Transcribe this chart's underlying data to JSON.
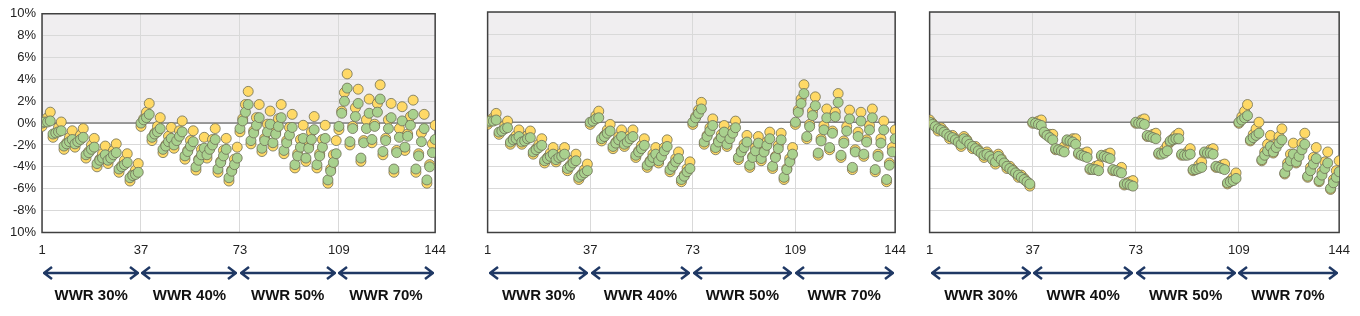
{
  "chart_data": [
    {
      "type": "scatter",
      "x": [
        1,
        2,
        3,
        4,
        5,
        6,
        7,
        8,
        9,
        10,
        11,
        12,
        13,
        14,
        15,
        16,
        17,
        18,
        19,
        20,
        21,
        22,
        23,
        24,
        25,
        26,
        27,
        28,
        29,
        30,
        31,
        32,
        33,
        34,
        35,
        36,
        37,
        38,
        39,
        40,
        41,
        42,
        43,
        44,
        45,
        46,
        47,
        48,
        49,
        50,
        51,
        52,
        53,
        54,
        55,
        56,
        57,
        58,
        59,
        60,
        61,
        62,
        63,
        64,
        65,
        66,
        67,
        68,
        69,
        70,
        71,
        72,
        73,
        74,
        75,
        76,
        77,
        78,
        79,
        80,
        81,
        82,
        83,
        84,
        85,
        86,
        87,
        88,
        89,
        90,
        91,
        92,
        93,
        94,
        95,
        96,
        97,
        98,
        99,
        100,
        101,
        102,
        103,
        104,
        105,
        106,
        107,
        108,
        109,
        110,
        111,
        112,
        113,
        114,
        115,
        116,
        117,
        118,
        119,
        120,
        121,
        122,
        123,
        124,
        125,
        126,
        127,
        128,
        129,
        130,
        131,
        132,
        133,
        134,
        135,
        136,
        137,
        138,
        139,
        140,
        141,
        142,
        143,
        144
      ],
      "series": [
        {
          "color": "#ffd966",
          "values": [
            -0.3,
            null,
            0.5,
            1.0,
            -1.3,
            null,
            -0.4,
            0.1,
            -2.4,
            -1.8,
            -1.3,
            -0.7,
            -2.2,
            null,
            -1.1,
            -0.5,
            -3.2,
            -2.6,
            -2.0,
            -1.4,
            -4.0,
            -3.3,
            -2.8,
            -2.1,
            -3.7,
            null,
            -2.5,
            -1.9,
            -4.5,
            -3.9,
            -3.4,
            -2.8,
            -5.3,
            -4.7,
            -4.3,
            -3.7,
            -0.3,
            0.4,
            1.0,
            1.8,
            -1.6,
            -0.9,
            -0.3,
            0.5,
            -2.7,
            -2.0,
            -1.2,
            -0.4,
            -2.3,
            null,
            -0.7,
            0.2,
            -3.3,
            -2.5,
            -1.6,
            -0.7,
            -4.3,
            -3.3,
            -2.4,
            -1.3,
            -3.2,
            null,
            -1.5,
            -0.5,
            -4.5,
            -3.5,
            -2.5,
            -1.4,
            -5.3,
            -4.3,
            -3.3,
            -2.2,
            -0.8,
            0.4,
            1.7,
            2.9,
            -1.9,
            -0.7,
            0.5,
            1.7,
            -2.6,
            -1.4,
            -0.1,
            1.1,
            -2.1,
            -0.8,
            0.4,
            1.7,
            -2.8,
            -1.6,
            -0.4,
            0.8,
            -4.1,
            -2.8,
            -1.5,
            -0.2,
            -3.5,
            -2.1,
            -0.8,
            0.6,
            -4.1,
            -2.8,
            -1.5,
            -0.2,
            -5.5,
            -4.2,
            -2.9,
            -1.6,
            -0.6,
            1.1,
            2.8,
            4.5,
            -2.0,
            -0.3,
            1.4,
            3.1,
            -3.5,
            -1.6,
            0.3,
            2.2,
            -1.8,
            -0.1,
            1.8,
            3.5,
            -2.9,
            -1.4,
            0.3,
            1.8,
            -4.5,
            -2.5,
            -0.5,
            1.5,
            -2.5,
            -1.0,
            0.6,
            2.1,
            -4.5,
            -2.8,
            -0.9,
            0.8,
            -5.5,
            -3.8,
            -1.9,
            -0.2
          ]
        },
        {
          "color": "#a9d18e",
          "values": [
            0,
            0.1,
            0.1,
            0.2,
            -1.0,
            -0.9,
            -0.8,
            -0.7,
            -2.1,
            -1.9,
            -1.7,
            -1.5,
            -1.9,
            -1.7,
            -1.5,
            -1.3,
            -2.9,
            -2.7,
            -2.4,
            -2.2,
            -3.7,
            -3.4,
            -3.2,
            -2.9,
            -3.4,
            -3.2,
            -2.9,
            -2.7,
            -4.2,
            -4.0,
            -3.8,
            -3.6,
            -5.0,
            -4.8,
            -4.7,
            -4.5,
            0,
            0.3,
            0.5,
            0.8,
            -1.3,
            -1.0,
            -0.8,
            -0.5,
            -2.4,
            -2.1,
            -1.7,
            -1.4,
            -2.0,
            -1.6,
            -1.2,
            -0.8,
            -3.0,
            -2.6,
            -2.1,
            -1.7,
            -4.0,
            -3.4,
            -2.9,
            -2.3,
            -2.9,
            -2.4,
            -2.0,
            -1.5,
            -4.2,
            -3.6,
            -3.0,
            -2.4,
            -5.0,
            -4.4,
            -3.8,
            -3.2,
            -0.5,
            0.2,
            1.0,
            1.7,
            -1.6,
            -0.9,
            -0.2,
            0.5,
            -2.3,
            -1.6,
            -0.8,
            -0.1,
            -1.8,
            -1.0,
            -0.3,
            0.5,
            -2.5,
            -1.8,
            -1.1,
            -0.4,
            -3.8,
            -3.0,
            -2.2,
            -1.4,
            -3.2,
            -2.3,
            -1.5,
            -0.6,
            -3.8,
            -3.0,
            -2.2,
            -1.4,
            -5.2,
            -4.4,
            -3.6,
            -2.8,
            -0.3,
            0.9,
            2.0,
            3.2,
            -1.7,
            -0.5,
            0.6,
            1.8,
            -3.2,
            -1.8,
            -0.5,
            0.9,
            -1.5,
            -0.3,
            1.0,
            2.2,
            -2.6,
            -1.6,
            -0.5,
            0.5,
            -4.2,
            -2.7,
            -1.3,
            0.2,
            -2.2,
            -1.2,
            -0.2,
            0.8,
            -4.2,
            -3.0,
            -1.7,
            -0.5,
            -5.2,
            -4.0,
            -2.7,
            -1.5
          ]
        }
      ],
      "xlim": [
        1,
        144
      ],
      "xticks": [
        1,
        37,
        73,
        109,
        144
      ],
      "ylim": [
        -10,
        10
      ],
      "yticks": [
        {
          "value": -10,
          "label": "10%"
        },
        {
          "value": -8,
          "label": "-8%"
        },
        {
          "value": -6,
          "label": "-6%"
        },
        {
          "value": -4,
          "label": "-4%"
        },
        {
          "value": -2,
          "label": "-2%"
        },
        {
          "value": 0,
          "label": "0%"
        },
        {
          "value": 2,
          "label": "2%"
        },
        {
          "value": 4,
          "label": "4%"
        },
        {
          "value": 6,
          "label": "6%"
        },
        {
          "value": 8,
          "label": "8%"
        },
        {
          "value": 10,
          "label": "10%"
        }
      ],
      "grid": true,
      "marker": "circle",
      "bands": [
        {
          "axis": "y",
          "from": 0,
          "to": 10,
          "color": "#f0eef0"
        }
      ],
      "ref_lines": [
        {
          "axis": "y",
          "value": 0,
          "color": "#7f7f7f"
        }
      ],
      "annotations": [
        "WWR 30%",
        "WWR 40%",
        "WWR 50%",
        "WWR 70%"
      ]
    },
    {
      "type": "scatter",
      "x": [
        1,
        2,
        3,
        4,
        5,
        6,
        7,
        8,
        9,
        10,
        11,
        12,
        13,
        14,
        15,
        16,
        17,
        18,
        19,
        20,
        21,
        22,
        23,
        24,
        25,
        26,
        27,
        28,
        29,
        30,
        31,
        32,
        33,
        34,
        35,
        36,
        37,
        38,
        39,
        40,
        41,
        42,
        43,
        44,
        45,
        46,
        47,
        48,
        49,
        50,
        51,
        52,
        53,
        54,
        55,
        56,
        57,
        58,
        59,
        60,
        61,
        62,
        63,
        64,
        65,
        66,
        67,
        68,
        69,
        70,
        71,
        72,
        73,
        74,
        75,
        76,
        77,
        78,
        79,
        80,
        81,
        82,
        83,
        84,
        85,
        86,
        87,
        88,
        89,
        90,
        91,
        92,
        93,
        94,
        95,
        96,
        97,
        98,
        99,
        100,
        101,
        102,
        103,
        104,
        105,
        106,
        107,
        108,
        109,
        110,
        111,
        112,
        113,
        114,
        115,
        116,
        117,
        118,
        119,
        120,
        121,
        122,
        123,
        124,
        125,
        126,
        127,
        128,
        129,
        130,
        131,
        132,
        133,
        134,
        135,
        136,
        137,
        138,
        139,
        140,
        141,
        142,
        143,
        144
      ],
      "series": [
        {
          "color": "#ffd966",
          "values": [
            -0.2,
            0.2,
            0.4,
            0.8,
            -1.1,
            null,
            -0.3,
            0.1,
            -2.0,
            -1.5,
            -1.2,
            -0.7,
            -2.0,
            null,
            -1.2,
            -0.8,
            -2.9,
            -2.4,
            -2.0,
            -1.5,
            -3.7,
            -3.2,
            -2.8,
            -2.3,
            -3.6,
            null,
            -2.8,
            -2.3,
            -4.4,
            -3.9,
            -3.4,
            -2.9,
            -5.2,
            -4.7,
            -4.3,
            -3.8,
            -0.2,
            null,
            0.6,
            1.0,
            -1.7,
            -1.2,
            -0.7,
            -0.2,
            -2.4,
            -1.8,
            -1.3,
            -0.7,
            -2.2,
            null,
            -1.2,
            -0.7,
            -3.2,
            -2.6,
            -2.1,
            -1.5,
            -4.1,
            -3.5,
            -2.9,
            -2.3,
            -3.7,
            null,
            -2.3,
            -1.6,
            -4.5,
            -3.9,
            -3.3,
            -2.7,
            -5.4,
            -4.8,
            -4.2,
            -3.6,
            -0.2,
            0.5,
            1.1,
            1.8,
            -2.0,
            -1.2,
            -0.5,
            0.3,
            -2.5,
            -1.7,
            -1.1,
            -0.3,
            -2.2,
            null,
            -0.7,
            0.1,
            -3.4,
            -2.6,
            -2.0,
            -1.2,
            -4.1,
            -3.1,
            -2.3,
            -1.3,
            -3.5,
            -2.6,
            -1.8,
            -0.9,
            -4.2,
            -3.1,
            -2.1,
            -1.0,
            -5.2,
            -4.2,
            -3.3,
            -2.3,
            -0.2,
            1.1,
            2.1,
            3.4,
            -1.5,
            -0.2,
            1.0,
            2.3,
            -3.0,
            -1.5,
            -0.3,
            1.2,
            -2.5,
            -0.8,
            0.9,
            2.6,
            -3.2,
            -1.7,
            -0.4,
            1.1,
            -4.3,
            -2.5,
            -0.9,
            0.9,
            -3.1,
            -1.6,
            -0.3,
            1.2,
            -4.5,
            -2.9,
            -1.5,
            0.1,
            -5.4,
            -3.7,
            -2.3,
            -0.7
          ]
        },
        {
          "color": "#a9d18e",
          "values": [
            0,
            0.1,
            0.1,
            0.2,
            -0.9,
            -0.8,
            -0.6,
            -0.5,
            -1.8,
            -1.6,
            -1.5,
            -1.3,
            -1.8,
            -1.7,
            -1.5,
            -1.4,
            -2.7,
            -2.5,
            -2.3,
            -2.1,
            -3.5,
            -3.3,
            -3.1,
            -2.9,
            -3.4,
            -3.2,
            -3.1,
            -2.9,
            -4.2,
            -4.0,
            -3.7,
            -3.5,
            -5.0,
            -4.8,
            -4.6,
            -4.4,
            0,
            0.1,
            0.3,
            0.4,
            -1.5,
            -1.3,
            -1.0,
            -0.8,
            -2.2,
            -1.9,
            -1.6,
            -1.3,
            -2.0,
            -1.8,
            -1.5,
            -1.3,
            -3.0,
            -2.7,
            -2.4,
            -2.1,
            -3.9,
            -3.6,
            -3.2,
            -2.9,
            -3.5,
            -3.1,
            -2.6,
            -2.2,
            -4.3,
            -4.0,
            -3.6,
            -3.3,
            -5.2,
            -4.9,
            -4.5,
            -4.2,
            0,
            0.4,
            0.8,
            1.2,
            -1.8,
            -1.3,
            -0.8,
            -0.3,
            -2.3,
            -1.8,
            -1.4,
            -0.9,
            -2.0,
            -1.5,
            -1.0,
            -0.5,
            -3.2,
            -2.7,
            -2.3,
            -1.8,
            -3.9,
            -3.2,
            -2.6,
            -1.9,
            -3.3,
            -2.7,
            -2.1,
            -1.5,
            -4.0,
            -3.2,
            -2.4,
            -1.6,
            -5.0,
            -4.3,
            -3.6,
            -2.9,
            0,
            0.9,
            1.7,
            2.6,
            -1.3,
            -0.4,
            0.6,
            1.5,
            -2.8,
            -1.7,
            -0.7,
            0.4,
            -2.3,
            -1.0,
            0.5,
            1.8,
            -3.0,
            -1.9,
            -0.8,
            0.3,
            -4.1,
            -2.7,
            -1.3,
            0.1,
            -2.9,
            -1.8,
            -0.7,
            0.4,
            -4.3,
            -3.1,
            -1.9,
            -0.7,
            -5.2,
            -3.9,
            -2.7,
            -1.5
          ]
        }
      ],
      "xlim": [
        1,
        144
      ],
      "xticks": [
        1,
        37,
        73,
        109,
        144
      ],
      "ylim": [
        -10,
        10
      ],
      "yticks": [
        -10,
        -8,
        -6,
        -4,
        -2,
        0,
        2,
        4,
        6,
        8,
        10
      ],
      "tick_labels": "x",
      "grid": true,
      "marker": "circle",
      "bands": [
        {
          "axis": "y",
          "from": 0,
          "to": 10,
          "color": "#f0eef0"
        }
      ],
      "ref_lines": [
        {
          "axis": "y",
          "value": 0,
          "color": "#7f7f7f"
        }
      ],
      "annotations": [
        "WWR 30%",
        "WWR 40%",
        "WWR 50%",
        "WWR 70%"
      ]
    },
    {
      "type": "scatter",
      "x": [
        1,
        2,
        3,
        4,
        5,
        6,
        7,
        8,
        9,
        10,
        11,
        12,
        13,
        14,
        15,
        16,
        17,
        18,
        19,
        20,
        21,
        22,
        23,
        24,
        25,
        26,
        27,
        28,
        29,
        30,
        31,
        32,
        33,
        34,
        35,
        36,
        37,
        38,
        39,
        40,
        41,
        42,
        43,
        44,
        45,
        46,
        47,
        48,
        49,
        50,
        51,
        52,
        53,
        54,
        55,
        56,
        57,
        58,
        59,
        60,
        61,
        62,
        63,
        64,
        65,
        66,
        67,
        68,
        69,
        70,
        71,
        72,
        73,
        74,
        75,
        76,
        77,
        78,
        79,
        80,
        81,
        82,
        83,
        84,
        85,
        86,
        87,
        88,
        89,
        90,
        91,
        92,
        93,
        94,
        95,
        96,
        97,
        98,
        99,
        100,
        101,
        102,
        103,
        104,
        105,
        106,
        107,
        108,
        109,
        110,
        111,
        112,
        113,
        114,
        115,
        116,
        117,
        118,
        119,
        120,
        121,
        122,
        123,
        124,
        125,
        126,
        127,
        128,
        129,
        130,
        131,
        132,
        133,
        134,
        135,
        136,
        137,
        138,
        139,
        140,
        141,
        142,
        143,
        144
      ],
      "series": [
        {
          "color": "#ffd966",
          "values": [
            0.2,
            -0.1,
            null,
            -0.8,
            -0.5,
            -0.8,
            null,
            -1.5,
            -1.2,
            -1.5,
            null,
            -2.2,
            -1.3,
            -1.6,
            null,
            -2.4,
            -2.2,
            -2.5,
            null,
            -3.2,
            -2.7,
            -3.0,
            null,
            -3.8,
            -2.9,
            -3.3,
            -3.7,
            -4.2,
            -4.0,
            -4.3,
            -4.6,
            -5.0,
            -4.8,
            -5.1,
            -5.4,
            -5.8,
            -0.1,
            null,
            0.1,
            0.2,
            -1.0,
            null,
            -1.1,
            -1.1,
            -2.5,
            null,
            null,
            -2.2,
            -1.7,
            null,
            -1.5,
            -1.5,
            -2.9,
            null,
            -2.8,
            -2.7,
            -4.3,
            null,
            -4.0,
            -3.9,
            -3.1,
            null,
            -2.9,
            -2.8,
            -4.4,
            null,
            null,
            -4.1,
            -5.7,
            -5.5,
            -5.4,
            -5.3,
            -0.1,
            null,
            0.2,
            0.3,
            -1.3,
            null,
            -1.1,
            -1.0,
            -2.9,
            null,
            -2.5,
            -2.1,
            -1.8,
            -1.5,
            -1.2,
            -1.0,
            -3.0,
            null,
            -2.7,
            -2.4,
            -4.4,
            null,
            -3.9,
            -3.6,
            -2.8,
            null,
            -2.5,
            -2.4,
            -4.1,
            null,
            -3.9,
            -3.8,
            -5.6,
            -5.3,
            -5.0,
            -4.6,
            -0.1,
            0.5,
            1.0,
            1.6,
            -1.7,
            -1.1,
            -0.6,
            0,
            -3.5,
            -2.7,
            -2.0,
            -1.2,
            -2.8,
            -2.0,
            -1.3,
            -0.6,
            -4.7,
            -3.7,
            -2.9,
            -1.9,
            -3.7,
            null,
            -1.9,
            -1.0,
            -5.0,
            -4.1,
            -3.2,
            -2.3,
            -5.4,
            -4.5,
            -3.6,
            -2.7,
            -6.1,
            -5.2,
            -4.4,
            -3.5
          ]
        },
        {
          "color": "#a9d18e",
          "values": [
            0,
            -0.2,
            -0.4,
            -0.6,
            -0.7,
            -0.9,
            -1.1,
            -1.3,
            -1.4,
            -1.6,
            -1.8,
            -2.0,
            -1.5,
            -1.7,
            -2.0,
            -2.2,
            -2.4,
            -2.6,
            -2.8,
            -3.0,
            -2.9,
            -3.1,
            -3.4,
            -3.6,
            -3.1,
            -3.4,
            -3.7,
            -4.0,
            -4.2,
            -4.4,
            -4.6,
            -4.8,
            -5.0,
            -5.2,
            -5.4,
            -5.6,
            0,
            -0.1,
            -0.2,
            -0.3,
            -0.9,
            -1.2,
            -1.4,
            -1.6,
            -2.4,
            -2.5,
            -2.6,
            -2.7,
            -1.6,
            -1.7,
            -1.8,
            -2.0,
            -2.8,
            -3.0,
            -3.1,
            -3.2,
            -4.2,
            -4.3,
            -4.3,
            -4.4,
            -3.0,
            -3.1,
            -3.2,
            -3.3,
            -4.3,
            -4.4,
            -4.5,
            -4.6,
            -5.6,
            -5.6,
            -5.7,
            -5.8,
            0,
            -0.1,
            -0.1,
            -0.2,
            -1.2,
            -1.3,
            -1.4,
            -1.5,
            -2.8,
            -2.9,
            -2.8,
            -2.6,
            -1.7,
            -1.6,
            -1.5,
            -1.5,
            -2.9,
            -3.0,
            -3.0,
            -2.9,
            -4.3,
            -4.3,
            -4.2,
            -4.1,
            -2.7,
            -2.8,
            -2.8,
            -2.9,
            -4.0,
            -4.1,
            -4.2,
            -4.3,
            -5.5,
            -5.4,
            -5.3,
            -5.1,
            0,
            0.2,
            0.4,
            0.6,
            -1.6,
            -1.4,
            -1.2,
            -1.0,
            -3.4,
            -3.0,
            -2.6,
            -2.2,
            -2.7,
            -2.3,
            -1.9,
            -1.6,
            -4.6,
            -4.0,
            -3.5,
            -2.9,
            -3.6,
            -3.1,
            -2.5,
            -2.0,
            -4.9,
            -4.4,
            -3.8,
            -3.3,
            -5.3,
            -4.8,
            -4.2,
            -3.7,
            -6.0,
            -5.5,
            -5.0,
            -4.5
          ]
        }
      ],
      "xlim": [
        1,
        144
      ],
      "xticks": [
        1,
        37,
        73,
        109,
        144
      ],
      "ylim": [
        -10,
        10
      ],
      "yticks": [
        -10,
        -8,
        -6,
        -4,
        -2,
        0,
        2,
        4,
        6,
        8,
        10
      ],
      "tick_labels": "x",
      "grid": true,
      "marker": "circle",
      "bands": [
        {
          "axis": "y",
          "from": 0,
          "to": 10,
          "color": "#f0eef0"
        }
      ],
      "ref_lines": [
        {
          "axis": "y",
          "value": 0,
          "color": "#7f7f7f"
        }
      ],
      "annotations": [
        "WWR 30%",
        "WWR 40%",
        "WWR 50%",
        "WWR 70%"
      ]
    }
  ]
}
